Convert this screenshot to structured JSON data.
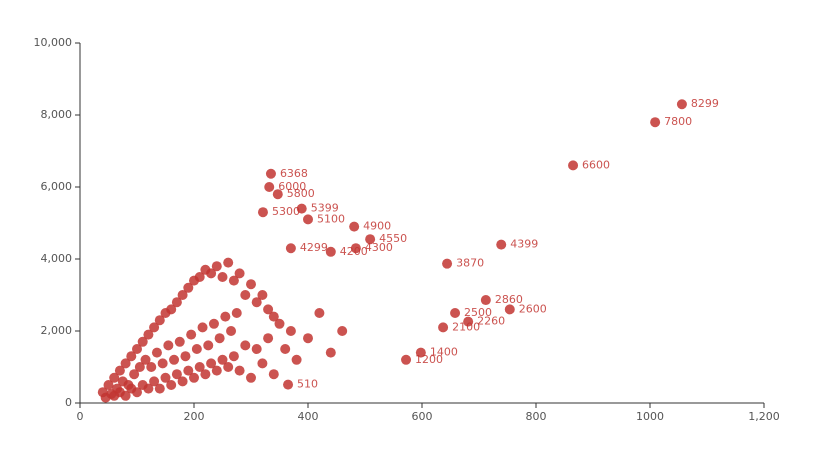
{
  "chart_data": {
    "type": "scatter",
    "series": [
      {
        "color": "#c23531",
        "show_labels": false,
        "x": [
          40,
          45,
          50,
          55,
          60,
          60,
          65,
          70,
          70,
          75,
          80,
          80,
          85,
          90,
          90,
          95,
          100,
          100,
          105,
          110,
          110,
          115,
          120,
          120,
          125,
          130,
          130,
          135,
          140,
          140,
          145,
          150,
          150,
          155,
          160,
          160,
          165,
          170,
          170,
          175,
          180,
          180,
          185,
          190,
          190,
          195,
          200,
          200,
          205,
          210,
          210,
          215,
          220,
          220,
          225,
          230,
          230,
          235,
          240,
          240,
          245,
          250,
          250,
          255,
          260,
          260,
          265,
          270,
          270,
          275,
          280,
          280,
          290,
          290,
          300,
          300,
          310,
          310,
          320,
          320,
          330,
          330,
          340,
          340,
          350,
          360,
          370,
          380,
          400,
          420,
          440,
          460
        ],
        "values": [
          300,
          150,
          500,
          250,
          700,
          200,
          400,
          900,
          300,
          600,
          1100,
          200,
          500,
          1300,
          400,
          800,
          1500,
          300,
          1000,
          1700,
          500,
          1200,
          1900,
          400,
          1000,
          2100,
          600,
          1400,
          2300,
          400,
          1100,
          2500,
          700,
          1600,
          2600,
          500,
          1200,
          2800,
          800,
          1700,
          3000,
          600,
          1300,
          3200,
          900,
          1900,
          3400,
          700,
          1500,
          3500,
          1000,
          2100,
          3700,
          800,
          1600,
          3600,
          1100,
          2200,
          3800,
          900,
          1800,
          3500,
          1200,
          2400,
          3900,
          1000,
          2000,
          3400,
          1300,
          2500,
          3600,
          900,
          3000,
          1600,
          3300,
          700,
          2800,
          1500,
          3000,
          1100,
          2600,
          1800,
          2400,
          800,
          2200,
          1500,
          2000,
          1200,
          1800,
          2500,
          1400,
          2000
        ]
      },
      {
        "color": "#c23531",
        "show_labels": true,
        "x": [
          1056,
          1009,
          865,
          739,
          644,
          712,
          754,
          658,
          681,
          637,
          598,
          572,
          335,
          332,
          347,
          389,
          321,
          400,
          481,
          509,
          484,
          370,
          365,
          440
        ],
        "values": [
          8299,
          7800,
          6600,
          4399,
          3870,
          2860,
          2600,
          2500,
          2260,
          2100,
          1400,
          1200,
          6368,
          6000,
          5800,
          5399,
          5300,
          5100,
          4900,
          4550,
          4300,
          4299,
          510,
          4200
        ]
      }
    ],
    "xlim": [
      0,
      1200
    ],
    "xticks": [
      0,
      200,
      400,
      600,
      800,
      1000,
      {
        "value": 1200,
        "label": "1,200"
      }
    ],
    "ylim": [
      0,
      10000
    ],
    "yticks": [
      0,
      {
        "value": 2000,
        "label": "2,000"
      },
      {
        "value": 4000,
        "label": "4,000"
      },
      {
        "value": 6000,
        "label": "6,000"
      },
      {
        "value": 8000,
        "label": "8,000"
      },
      {
        "value": 10000,
        "label": "10,000"
      }
    ],
    "grid": false
  }
}
